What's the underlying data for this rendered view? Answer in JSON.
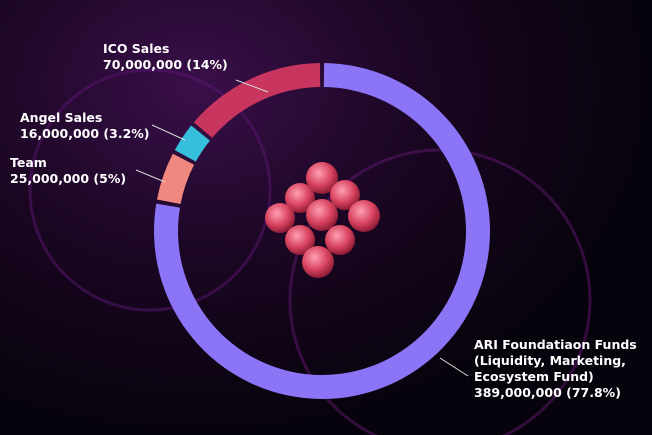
{
  "chart_data": {
    "type": "donut",
    "categories": [
      "ARI Foundatiaon Funds (Liquidity, Marketing, Ecosystem Fund)",
      "Team",
      "Angel Sales",
      "ICO Sales"
    ],
    "values": [
      389000000,
      25000000,
      16000000,
      70000000
    ],
    "value_labels": [
      "389,000,000 (77.8%)",
      "25,000,000 (5%)",
      "16,000,000 (3.2%)",
      "70,000,000 (14%)"
    ],
    "colors": [
      "#8b74f6",
      "#f0887f",
      "#36bfdc",
      "#c8355f"
    ]
  }
}
